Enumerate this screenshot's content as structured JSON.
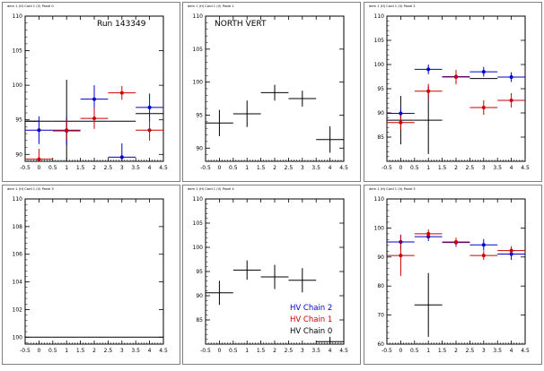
{
  "colors": {
    "frame": "#808080",
    "background": "#ffffff",
    "chain2": "#0000cc",
    "chain1": "#cc0000",
    "chain0": "#000000"
  },
  "chart_data": [
    {
      "type": "scatter",
      "pad_title": "dem 1 (H) Card 1 (V) Panel 0",
      "annotation": "Run 143349",
      "xlim": [
        -0.5,
        4.5
      ],
      "ylim": [
        89,
        110
      ],
      "xticks": [
        "-0.5",
        "0",
        "0.5",
        "1",
        "1.5",
        "2",
        "2.5",
        "3",
        "3.5",
        "4",
        "4.5"
      ],
      "xtick_values": [
        -0.5,
        0,
        0.5,
        1,
        1.5,
        2,
        2.5,
        3,
        3.5,
        4,
        4.5
      ],
      "yticks": [
        "90",
        "95",
        "100",
        "105",
        "110"
      ],
      "ytick_values": [
        90,
        95,
        100,
        105,
        110
      ],
      "series": [
        {
          "color_key": "chain0",
          "x": [
            -0.5,
            0,
            1,
            2,
            3,
            4
          ],
          "y": [
            94.8,
            94.8,
            94.8,
            94.8,
            94.8,
            95.9
          ],
          "xerr": [
            0.5,
            0.5,
            0.5,
            0.5,
            0.5,
            0.5
          ],
          "yerr": [
            0,
            0,
            6,
            0,
            0,
            0
          ],
          "marker": false
        },
        {
          "color_key": "chain2",
          "x": [
            0,
            1,
            2,
            3,
            4
          ],
          "y": [
            93.5,
            93.4,
            98.0,
            89.6,
            96.8
          ],
          "xerr": [
            0.5,
            0.5,
            0.5,
            0.5,
            0.5
          ],
          "yerr": [
            2,
            2,
            2,
            2,
            2
          ],
          "marker": true
        },
        {
          "color_key": "chain1",
          "x": [
            0,
            1,
            2,
            3,
            4
          ],
          "y": [
            89.3,
            93.5,
            95.2,
            98.9,
            93.5
          ],
          "xerr": [
            0.5,
            0.5,
            0.5,
            0.5,
            0.5
          ],
          "yerr": [
            1.5,
            1.5,
            1.5,
            1.0,
            1.5
          ],
          "marker": true
        }
      ]
    },
    {
      "type": "scatter",
      "pad_title": "dem 1 (H) Card 1 (V) Panel 1",
      "annotation": "NORTH VERT",
      "xlim": [
        -0.5,
        4.5
      ],
      "ylim": [
        88,
        110
      ],
      "xticks": [
        "-0.5",
        "0",
        "0.5",
        "1",
        "1.5",
        "2",
        "2.5",
        "3",
        "3.5",
        "4",
        "4.5"
      ],
      "xtick_values": [
        -0.5,
        0,
        0.5,
        1,
        1.5,
        2,
        2.5,
        3,
        3.5,
        4,
        4.5
      ],
      "yticks": [
        "90",
        "95",
        "100",
        "105",
        "110"
      ],
      "ytick_values": [
        90,
        95,
        100,
        105,
        110
      ],
      "series": [
        {
          "color_key": "chain0",
          "x": [
            0,
            1,
            2,
            3,
            4
          ],
          "y": [
            93.8,
            95.2,
            98.4,
            97.5,
            91.3
          ],
          "xerr": [
            0.5,
            0.5,
            0.5,
            0.5,
            0.5
          ],
          "yerr": [
            2,
            2,
            1.2,
            1.2,
            2
          ],
          "marker": false
        }
      ]
    },
    {
      "type": "scatter",
      "pad_title": "dem 1 (H) Card 1 (V) Panel 2",
      "xlim": [
        -0.5,
        4.5
      ],
      "ylim": [
        80,
        110
      ],
      "xticks": [
        "-0.5",
        "0",
        "0.5",
        "1",
        "1.5",
        "2",
        "2.5",
        "3",
        "3.5",
        "4",
        "4.5"
      ],
      "xtick_values": [
        -0.5,
        0,
        0.5,
        1,
        1.5,
        2,
        2.5,
        3,
        3.5,
        4,
        4.5
      ],
      "yticks": [
        "85",
        "90",
        "95",
        "100",
        "105",
        "110"
      ],
      "ytick_values": [
        85,
        90,
        95,
        100,
        105,
        110
      ],
      "series": [
        {
          "color_key": "chain0",
          "x": [
            0,
            1,
            3
          ],
          "y": [
            88.5,
            88.5,
            97.1
          ],
          "xerr": [
            0.5,
            0.5,
            0.5
          ],
          "yerr": [
            5,
            7,
            0
          ],
          "marker": false
        },
        {
          "color_key": "chain2",
          "x": [
            0,
            1,
            2,
            3,
            4
          ],
          "y": [
            89.9,
            99.0,
            97.5,
            98.5,
            97.4
          ],
          "xerr": [
            0.5,
            0.5,
            0.5,
            0.5,
            0.5
          ],
          "yerr": [
            1,
            1,
            1,
            1,
            1
          ],
          "marker": true
        },
        {
          "color_key": "chain1",
          "x": [
            0,
            1,
            2,
            3,
            4
          ],
          "y": [
            88.0,
            94.5,
            97.4,
            91.1,
            92.6
          ],
          "xerr": [
            0.5,
            0.5,
            0.5,
            0.5,
            0.5
          ],
          "yerr": [
            1.5,
            1.5,
            1.5,
            1.5,
            1.5
          ],
          "marker": true
        }
      ]
    },
    {
      "type": "scatter",
      "pad_title": "dem 1 (H) Card 1 (V) Panel 3",
      "xlim": [
        -0.5,
        4.5
      ],
      "ylim": [
        99.5,
        110
      ],
      "xticks": [
        "-0.5",
        "0",
        "0.5",
        "1",
        "1.5",
        "2",
        "2.5",
        "3",
        "3.5",
        "4",
        "4.5"
      ],
      "xtick_values": [
        -0.5,
        0,
        0.5,
        1,
        1.5,
        2,
        2.5,
        3,
        3.5,
        4,
        4.5
      ],
      "yticks": [
        "100",
        "102",
        "104",
        "106",
        "108",
        "110"
      ],
      "ytick_values": [
        100,
        102,
        104,
        106,
        108,
        110
      ],
      "series": [
        {
          "color_key": "chain0",
          "x": [
            0,
            1,
            2,
            3,
            4
          ],
          "y": [
            100,
            100,
            100,
            100,
            100
          ],
          "xerr": [
            0.5,
            0.5,
            0.5,
            0.5,
            0.5
          ],
          "yerr": [
            0,
            0,
            0,
            0,
            0
          ],
          "marker": false
        }
      ]
    },
    {
      "type": "scatter",
      "pad_title": "dem 1 (H) Card 1 (V) Panel 4",
      "xlim": [
        -0.5,
        4.5
      ],
      "ylim": [
        80,
        110
      ],
      "xticks": [
        "-0.5",
        "0",
        "0.5",
        "1",
        "1.5",
        "2",
        "2.5",
        "3",
        "3.5",
        "4",
        "4.5"
      ],
      "xtick_values": [
        -0.5,
        0,
        0.5,
        1,
        1.5,
        2,
        2.5,
        3,
        3.5,
        4,
        4.5
      ],
      "yticks": [
        "85",
        "90",
        "95",
        "100",
        "105",
        "110"
      ],
      "ytick_values": [
        85,
        90,
        95,
        100,
        105,
        110
      ],
      "legend": {
        "placement": "bottom-right",
        "entries": [
          {
            "label": "HV Chain 2",
            "color_key": "chain2"
          },
          {
            "label": "HV Chain 1",
            "color_key": "chain1"
          },
          {
            "label": "HV Chain 0",
            "color_key": "chain0"
          }
        ]
      },
      "series": [
        {
          "color_key": "chain0",
          "x": [
            0,
            1,
            2,
            3,
            4
          ],
          "y": [
            90.6,
            95.3,
            93.9,
            93.2,
            80.5
          ],
          "xerr": [
            0.5,
            0.5,
            0.5,
            0.5,
            0.5
          ],
          "yerr": [
            2.5,
            2,
            2.5,
            2.5,
            1
          ],
          "marker": false
        }
      ]
    },
    {
      "type": "scatter",
      "pad_title": "dem 1 (H) Card 1 (V) Panel 5",
      "xlim": [
        -0.5,
        4.5
      ],
      "ylim": [
        60,
        110
      ],
      "xticks": [
        "-0.5",
        "0",
        "0.5",
        "1",
        "1.5",
        "2",
        "2.5",
        "3",
        "3.5",
        "4",
        "4.5"
      ],
      "xtick_values": [
        -0.5,
        0,
        0.5,
        1,
        1.5,
        2,
        2.5,
        3,
        3.5,
        4,
        4.5
      ],
      "yticks": [
        "60",
        "70",
        "80",
        "90",
        "100",
        "110"
      ],
      "ytick_values": [
        60,
        70,
        80,
        90,
        100,
        110
      ],
      "series": [
        {
          "color_key": "chain0",
          "x": [
            1
          ],
          "y": [
            73.5
          ],
          "xerr": [
            0.5
          ],
          "yerr": [
            11
          ],
          "marker": false
        },
        {
          "color_key": "chain2",
          "x": [
            0,
            1,
            2,
            3,
            4
          ],
          "y": [
            95.2,
            97.0,
            95.0,
            94.2,
            91.0
          ],
          "xerr": [
            0.5,
            0.5,
            0.5,
            0.5,
            0.5
          ],
          "yerr": [
            2.5,
            1.5,
            1.5,
            2,
            2
          ],
          "marker": true
        },
        {
          "color_key": "chain1",
          "x": [
            0,
            1,
            2,
            3,
            4
          ],
          "y": [
            90.5,
            98.0,
            95.2,
            90.5,
            92.2
          ],
          "xerr": [
            0.5,
            0.5,
            0.5,
            0.5,
            0.5
          ],
          "yerr": [
            7,
            1.5,
            1.5,
            1.5,
            1.5
          ],
          "marker": true
        }
      ]
    }
  ]
}
